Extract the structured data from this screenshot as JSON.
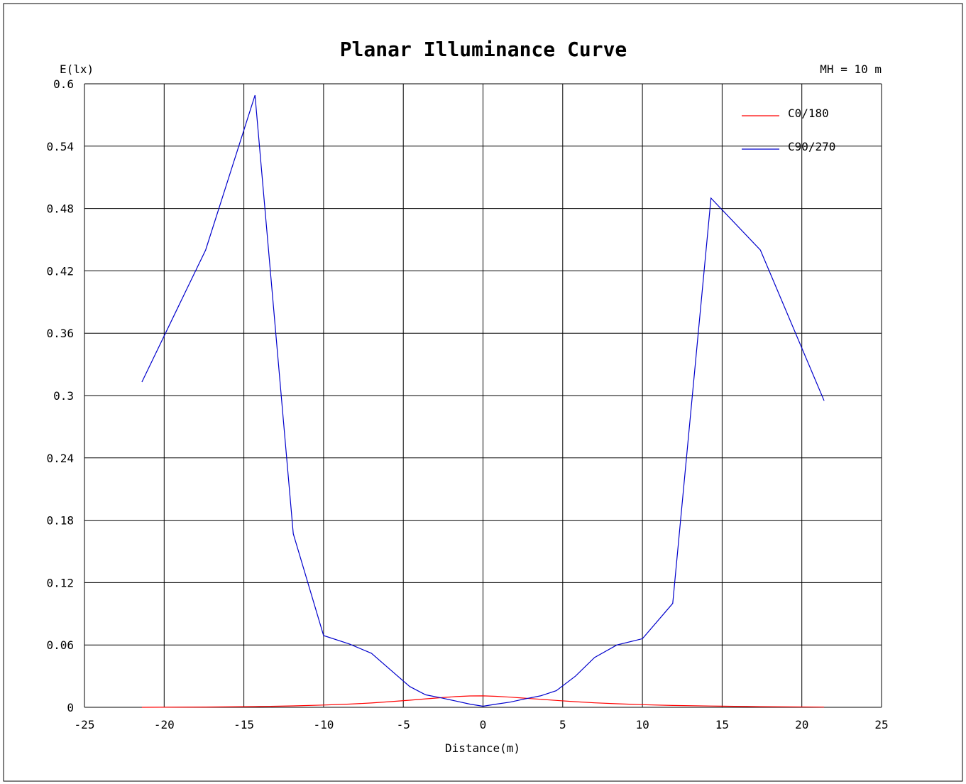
{
  "chart_data": {
    "type": "line",
    "title": "Planar Illuminance Curve",
    "ylabel": "E(lx)",
    "xlabel": "Distance(m)",
    "annotation": "MH = 10 m",
    "xlim": [
      -25,
      25
    ],
    "ylim": [
      0,
      0.6
    ],
    "xticks": [
      -25,
      -20,
      -15,
      -10,
      -5,
      0,
      5,
      10,
      15,
      20,
      25
    ],
    "yticks": [
      0,
      0.06,
      0.12,
      0.18,
      0.24,
      0.3,
      0.36,
      0.42,
      0.48,
      0.54,
      0.6
    ],
    "xtick_labels": [
      "-25",
      "-20",
      "-15",
      "-10",
      "-5",
      "0",
      "5",
      "10",
      "15",
      "20",
      "25"
    ],
    "ytick_labels": [
      "0",
      "0.06",
      "0.12",
      "0.18",
      "0.24",
      "0.3",
      "0.36",
      "0.42",
      "0.48",
      "0.54",
      "0.6"
    ],
    "grid": true,
    "legend_position": "top-right",
    "series": [
      {
        "name": "C0/180",
        "color": "#ff0000",
        "x": [
          -21.4,
          -17.4,
          -14.3,
          -11.9,
          -10.0,
          -8.4,
          -7.0,
          -5.8,
          -4.6,
          -3.6,
          -2.6,
          -1.7,
          -0.8,
          0.0,
          0.8,
          1.7,
          2.6,
          3.6,
          4.6,
          5.8,
          7.0,
          8.4,
          10.0,
          11.9,
          14.3,
          17.4,
          21.4
        ],
        "y": [
          0.0,
          0.0003,
          0.0007,
          0.0014,
          0.0022,
          0.0031,
          0.0042,
          0.0055,
          0.0068,
          0.0081,
          0.0093,
          0.0103,
          0.0109,
          0.011,
          0.0106,
          0.0098,
          0.0088,
          0.0077,
          0.0066,
          0.0054,
          0.0043,
          0.0034,
          0.0025,
          0.0018,
          0.0012,
          0.0006,
          0.0002
        ]
      },
      {
        "name": "C90/270",
        "color": "#0000cc",
        "x": [
          -21.4,
          -17.4,
          -14.3,
          -11.9,
          -10.0,
          -8.4,
          -7.0,
          -5.8,
          -4.6,
          -3.6,
          -2.6,
          -1.7,
          -0.8,
          0.0,
          0.8,
          1.7,
          2.6,
          3.6,
          4.6,
          5.8,
          7.0,
          8.4,
          10.0,
          11.9,
          14.3,
          17.4,
          21.4
        ],
        "y": [
          0.313,
          0.44,
          0.589,
          0.167,
          0.069,
          0.061,
          0.052,
          0.036,
          0.02,
          0.012,
          0.009,
          0.006,
          0.003,
          0.001,
          0.003,
          0.005,
          0.008,
          0.011,
          0.016,
          0.03,
          0.048,
          0.06,
          0.066,
          0.1,
          0.49,
          0.44,
          0.295
        ]
      }
    ]
  }
}
